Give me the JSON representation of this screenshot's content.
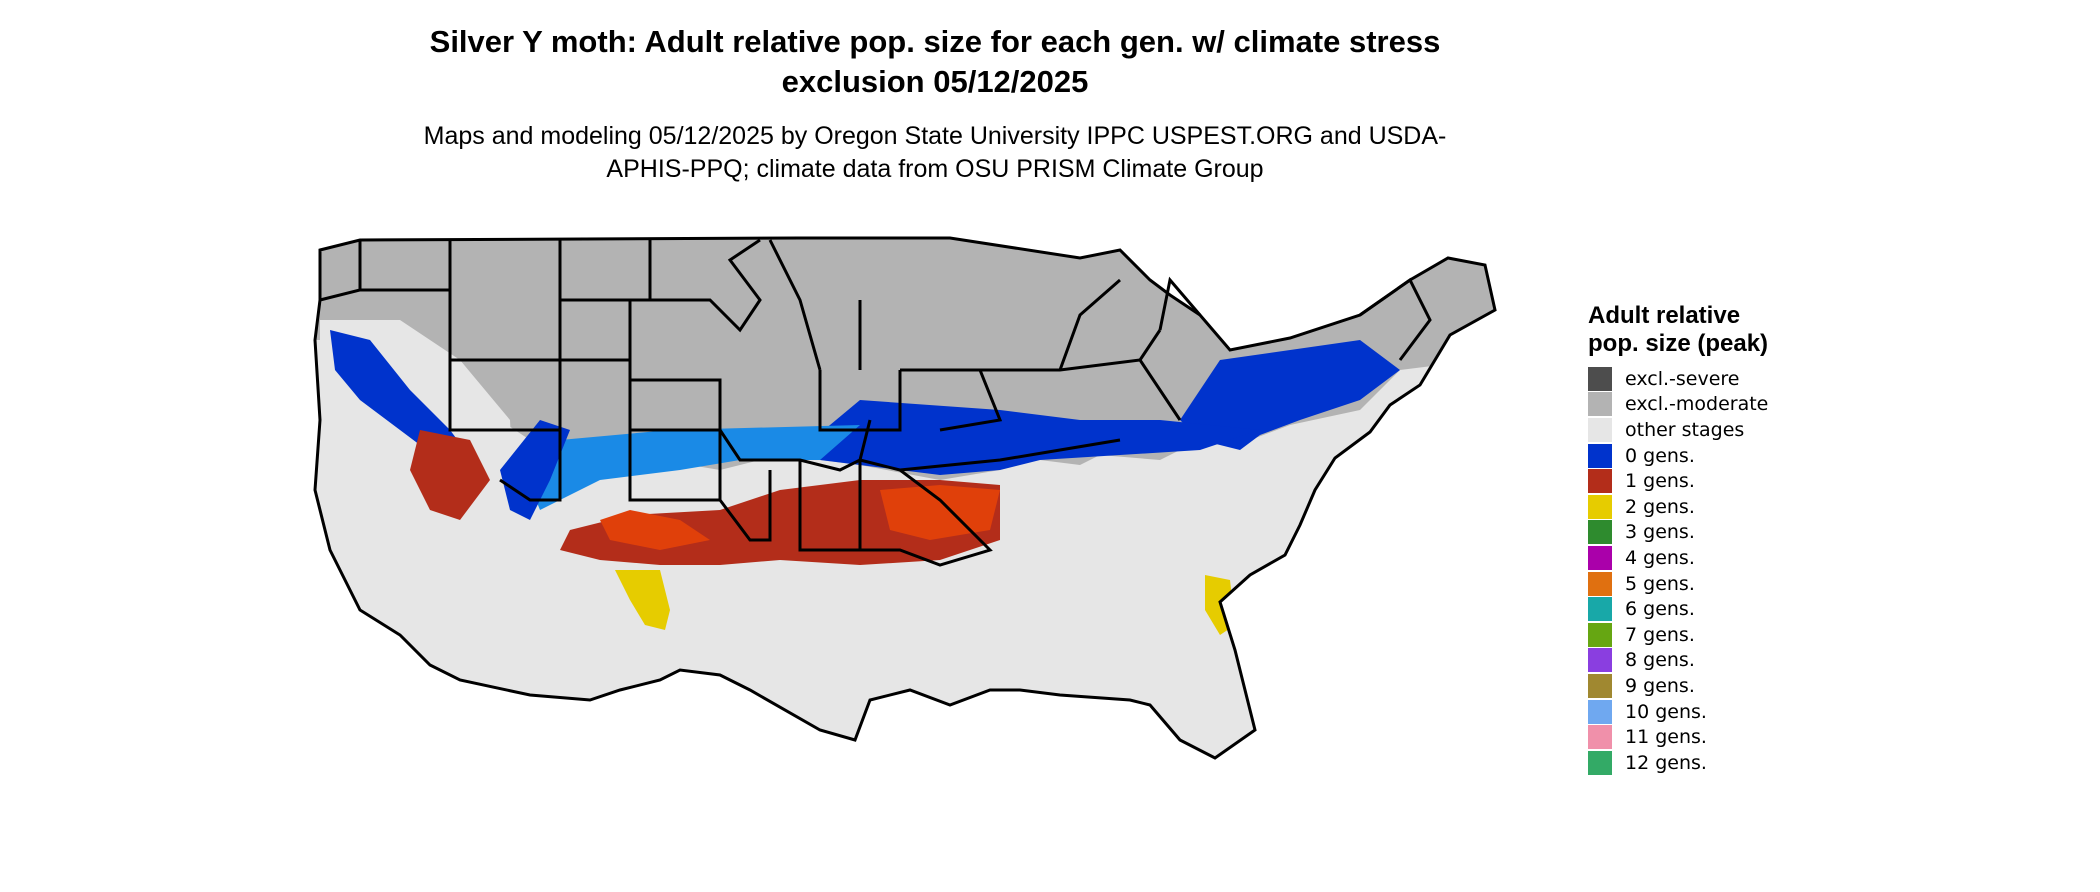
{
  "title": "Silver Y moth: Adult relative pop. size for each gen. w/ climate stress exclusion 05/12/2025",
  "subtitle": "Maps and modeling 05/12/2025 by Oregon State University IPPC USPEST.ORG and USDA-APHIS-PPQ; climate data from OSU PRISM Climate Group",
  "legend": {
    "title": "Adult relative pop. size (peak)",
    "items": [
      {
        "label": "excl.-severe",
        "color": "#4d4d4d"
      },
      {
        "label": "excl.-moderate",
        "color": "#b3b3b3"
      },
      {
        "label": "other stages",
        "color": "#e6e6e6"
      },
      {
        "label": "0 gens.",
        "color": "#0033cc"
      },
      {
        "label": "1 gens.",
        "color": "#b32d1a"
      },
      {
        "label": "2 gens.",
        "color": "#e6cc00"
      },
      {
        "label": "3 gens.",
        "color": "#2e8b2e"
      },
      {
        "label": "4 gens.",
        "color": "#aa00aa"
      },
      {
        "label": "5 gens.",
        "color": "#e07010"
      },
      {
        "label": "6 gens.",
        "color": "#18a8a8"
      },
      {
        "label": "7 gens.",
        "color": "#66a612"
      },
      {
        "label": "8 gens.",
        "color": "#8a3ee0"
      },
      {
        "label": "9 gens.",
        "color": "#a08830"
      },
      {
        "label": "10 gens.",
        "color": "#6fa8f0"
      },
      {
        "label": "11 gens.",
        "color": "#f090aa"
      },
      {
        "label": "12 gens.",
        "color": "#33aa66"
      }
    ]
  }
}
